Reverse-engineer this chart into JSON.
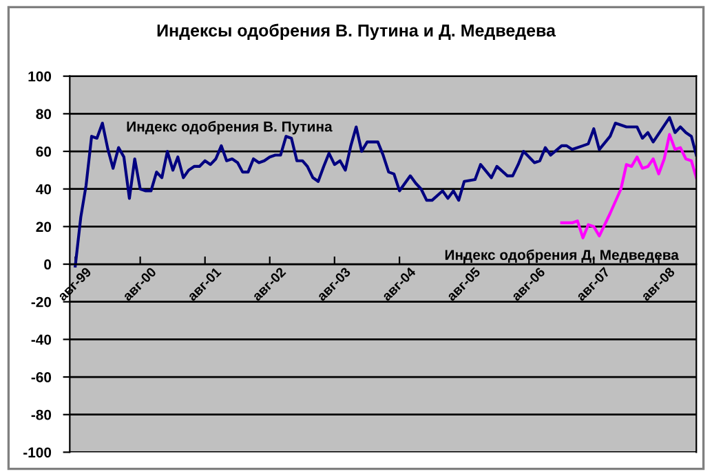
{
  "chart_data": {
    "type": "line",
    "title": "Индексы одобрения В. Путина и Д. Медведева",
    "xlim": [
      "1999-07",
      "2009-03"
    ],
    "xticks": [
      {
        "value": "1999-08",
        "label": "авг-99"
      },
      {
        "value": "2000-08",
        "label": "авг-00"
      },
      {
        "value": "2001-08",
        "label": "авг-01"
      },
      {
        "value": "2002-08",
        "label": "авг-02"
      },
      {
        "value": "2003-08",
        "label": "авг-03"
      },
      {
        "value": "2004-08",
        "label": "авг-04"
      },
      {
        "value": "2005-08",
        "label": "авг-05"
      },
      {
        "value": "2006-08",
        "label": "авг-06"
      },
      {
        "value": "2007-08",
        "label": "авг-07"
      },
      {
        "value": "2008-08",
        "label": "авг-08"
      }
    ],
    "ylim": [
      -100,
      100
    ],
    "yticks": [
      -100,
      -80,
      -60,
      -40,
      -20,
      0,
      20,
      40,
      60,
      80,
      100
    ],
    "grid": "y",
    "legend": false,
    "marker": "none",
    "line_style": "solid",
    "series": [
      {
        "name": "Индекс одобрения В. Путина",
        "color": "#000080",
        "x": [
          "1999-08",
          "1999-09",
          "1999-10",
          "1999-11",
          "1999-12",
          "2000-01",
          "2000-02",
          "2000-03",
          "2000-04",
          "2000-05",
          "2000-06",
          "2000-07",
          "2000-08",
          "2000-09",
          "2000-10",
          "2000-11",
          "2000-12",
          "2001-01",
          "2001-02",
          "2001-03",
          "2001-04",
          "2001-05",
          "2001-06",
          "2001-07",
          "2001-08",
          "2001-09",
          "2001-10",
          "2001-11",
          "2001-12",
          "2002-01",
          "2002-02",
          "2002-03",
          "2002-04",
          "2002-05",
          "2002-06",
          "2002-07",
          "2002-08",
          "2002-09",
          "2002-10",
          "2002-11",
          "2002-12",
          "2003-01",
          "2003-02",
          "2003-03",
          "2003-04",
          "2003-05",
          "2003-06",
          "2003-07",
          "2003-08",
          "2003-09",
          "2003-10",
          "2003-11",
          "2003-12",
          "2004-01",
          "2004-02",
          "2004-04",
          "2004-05",
          "2004-06",
          "2004-07",
          "2004-08",
          "2004-10",
          "2004-11",
          "2004-12",
          "2005-01",
          "2005-02",
          "2005-04",
          "2005-05",
          "2005-06",
          "2005-07",
          "2005-08",
          "2005-10",
          "2005-11",
          "2006-01",
          "2006-02",
          "2006-04",
          "2006-05",
          "2006-06",
          "2006-07",
          "2006-09",
          "2006-10",
          "2006-11",
          "2006-12",
          "2007-02",
          "2007-03",
          "2007-04",
          "2007-06",
          "2007-07",
          "2007-08",
          "2007-09",
          "2007-11",
          "2007-12",
          "2008-02",
          "2008-04",
          "2008-05",
          "2008-06",
          "2008-07",
          "2008-10",
          "2008-11",
          "2008-12",
          "2009-01",
          "2009-02",
          "2009-03"
        ],
        "values": [
          -1,
          25,
          42,
          68,
          67,
          75,
          61,
          51,
          62,
          57,
          35,
          56,
          40,
          39,
          39,
          49,
          46,
          60,
          50,
          57,
          46,
          50,
          52,
          52,
          55,
          53,
          56,
          63,
          55,
          56,
          54,
          49,
          49,
          56,
          54,
          55,
          57,
          58,
          58,
          68,
          67,
          55,
          55,
          52,
          46,
          44,
          52,
          59,
          53,
          55,
          50,
          63,
          73,
          60,
          65,
          65,
          58,
          49,
          48,
          39,
          47,
          43,
          40,
          34,
          34,
          39,
          35,
          39,
          34,
          44,
          45,
          53,
          46,
          52,
          47,
          47,
          53,
          60,
          54,
          55,
          62,
          58,
          63,
          63,
          61,
          63,
          64,
          72,
          61,
          68,
          75,
          73,
          73,
          67,
          70,
          65,
          78,
          70,
          73,
          70,
          68,
          58
        ]
      },
      {
        "name": "Индекс одобрения Д. Медведева",
        "color": "#ff00ff",
        "x": [
          "2007-02",
          "2007-04",
          "2007-05",
          "2007-06",
          "2007-07",
          "2007-08",
          "2007-09",
          "2007-11",
          "2008-01",
          "2008-02",
          "2008-03",
          "2008-04",
          "2008-05",
          "2008-06",
          "2008-07",
          "2008-08",
          "2008-09",
          "2008-10",
          "2008-11",
          "2008-12",
          "2009-01",
          "2009-02",
          "2009-03"
        ],
        "values": [
          22,
          22,
          23,
          14,
          21,
          20,
          15,
          27,
          40,
          53,
          52,
          57,
          51,
          52,
          56,
          48,
          56,
          69,
          61,
          62,
          56,
          55,
          46
        ]
      }
    ]
  }
}
